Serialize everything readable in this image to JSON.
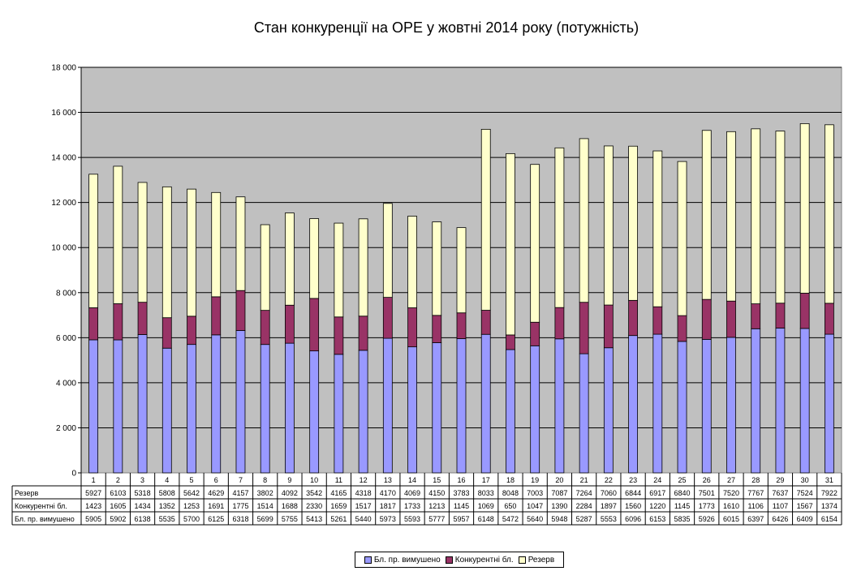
{
  "colors": {
    "forced": "#9999ff",
    "competitive": "#993366",
    "reserve": "#ffffcc",
    "plot_bg": "#c0c0c0"
  },
  "chart_data": {
    "type": "bar",
    "stacked": true,
    "title": "Стан конкуренції на ОРЕ  у жовтні 2014 року (потужність)",
    "xlabel": "",
    "ylabel": "",
    "ylim": [
      0,
      18000
    ],
    "y_ticks": [
      "0",
      "2 000",
      "4 000",
      "6 000",
      "8 000",
      "10 000",
      "12 000",
      "14 000",
      "16 000",
      "18 000"
    ],
    "grid": true,
    "legend_position": "bottom",
    "categories": [
      "1",
      "2",
      "3",
      "4",
      "5",
      "6",
      "7",
      "8",
      "9",
      "10",
      "11",
      "12",
      "13",
      "14",
      "15",
      "16",
      "17",
      "18",
      "19",
      "20",
      "21",
      "22",
      "23",
      "24",
      "25",
      "26",
      "27",
      "28",
      "29",
      "30",
      "31"
    ],
    "series": [
      {
        "name": "Бл. пр. вимушено",
        "table_label": "Бл. пр. вимушено",
        "values": [
          5905,
          5902,
          6138,
          5535,
          5700,
          6125,
          6318,
          5699,
          5755,
          5413,
          5261,
          5440,
          5973,
          5593,
          5777,
          5957,
          6148,
          5472,
          5640,
          5948,
          5287,
          5553,
          6096,
          6153,
          5835,
          5926,
          6015,
          6397,
          6426,
          6409,
          6154
        ]
      },
      {
        "name": "Конкурентні бл.",
        "table_label": "Конкурентні бл.",
        "values": [
          1423,
          1605,
          1434,
          1352,
          1253,
          1691,
          1775,
          1514,
          1688,
          2330,
          1659,
          1517,
          1817,
          1733,
          1213,
          1145,
          1069,
          650,
          1047,
          1390,
          2284,
          1897,
          1560,
          1220,
          1145,
          1773,
          1610,
          1106,
          1107,
          1567,
          1374
        ]
      },
      {
        "name": "Резерв",
        "table_label": "Резерв",
        "values": [
          5927,
          6103,
          5318,
          5808,
          5642,
          4629,
          4157,
          3802,
          4092,
          3542,
          4165,
          4318,
          4170,
          4069,
          4150,
          3783,
          8033,
          8048,
          7003,
          7087,
          7264,
          7060,
          6844,
          6917,
          6840,
          7501,
          7520,
          7767,
          7637,
          7524,
          7922
        ]
      }
    ]
  }
}
